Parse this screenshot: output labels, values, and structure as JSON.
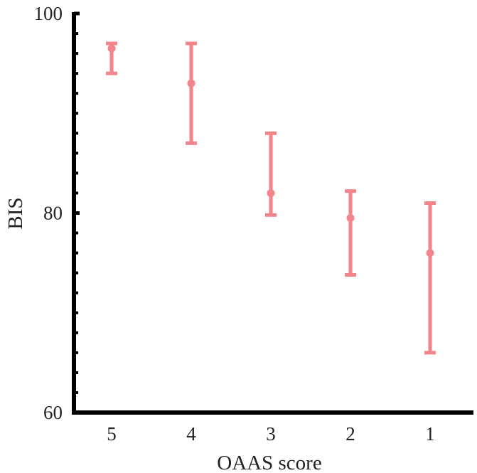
{
  "chart_data": {
    "type": "scatter",
    "title": "",
    "xlabel": "OAAS score",
    "ylabel": "BIS",
    "categories": [
      "5",
      "4",
      "3",
      "2",
      "1"
    ],
    "ylim": [
      60,
      100
    ],
    "yticks": [
      60,
      80,
      100
    ],
    "yticks_minor_step": 2,
    "grid": false,
    "legend": "none",
    "color": "#f4848b",
    "series": [
      {
        "mean": [
          96.5,
          93.0,
          82.0,
          79.5,
          76.0
        ],
        "upper": [
          97.0,
          97.0,
          88.0,
          82.2,
          81.0
        ],
        "lower": [
          94.0,
          87.0,
          79.8,
          73.8,
          66.0
        ]
      }
    ]
  }
}
